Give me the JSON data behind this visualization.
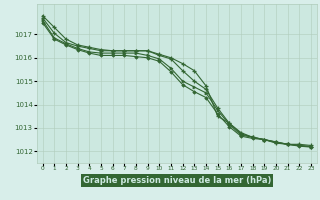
{
  "title": "Graphe pression niveau de la mer (hPa)",
  "xlabel_hours": [
    0,
    1,
    2,
    3,
    4,
    5,
    6,
    7,
    8,
    9,
    10,
    11,
    12,
    13,
    14,
    15,
    16,
    17,
    18,
    19,
    20,
    21,
    22,
    23
  ],
  "ylim": [
    1011.5,
    1018.3
  ],
  "yticks": [
    1012,
    1013,
    1014,
    1015,
    1016,
    1017
  ],
  "line1": [
    1017.8,
    1017.3,
    1016.8,
    1016.55,
    1016.45,
    1016.35,
    1016.3,
    1016.3,
    1016.3,
    1016.3,
    1016.15,
    1016.0,
    1015.75,
    1015.45,
    1014.8,
    1013.5,
    1013.2,
    1012.8,
    1012.6,
    1012.5,
    1012.35,
    1012.3,
    1012.3,
    1012.25
  ],
  "line2": [
    1017.7,
    1017.05,
    1016.65,
    1016.5,
    1016.4,
    1016.3,
    1016.3,
    1016.3,
    1016.3,
    1016.3,
    1016.1,
    1015.95,
    1015.45,
    1015.0,
    1014.65,
    1013.85,
    1013.2,
    1012.75,
    1012.6,
    1012.5,
    1012.4,
    1012.3,
    1012.25,
    1012.2
  ],
  "line3": [
    1017.6,
    1016.85,
    1016.6,
    1016.4,
    1016.25,
    1016.2,
    1016.2,
    1016.2,
    1016.2,
    1016.1,
    1015.95,
    1015.55,
    1015.0,
    1014.75,
    1014.5,
    1013.75,
    1013.15,
    1012.7,
    1012.6,
    1012.5,
    1012.4,
    1012.3,
    1012.25,
    1012.2
  ],
  "line4": [
    1017.5,
    1016.8,
    1016.55,
    1016.35,
    1016.2,
    1016.1,
    1016.1,
    1016.1,
    1016.05,
    1016.0,
    1015.85,
    1015.4,
    1014.85,
    1014.55,
    1014.3,
    1013.6,
    1013.05,
    1012.65,
    1012.55,
    1012.5,
    1012.38,
    1012.3,
    1012.22,
    1012.18
  ],
  "bg_color": "#d8eeea",
  "plot_bg_color": "#cce8e0",
  "grid_color": "#b0ccbb",
  "line_color": "#336633",
  "marker_color": "#336633",
  "tick_label_color": "#336633",
  "title_color": "#336633",
  "title_bg": "#336633",
  "title_text_color": "#cce8e0"
}
